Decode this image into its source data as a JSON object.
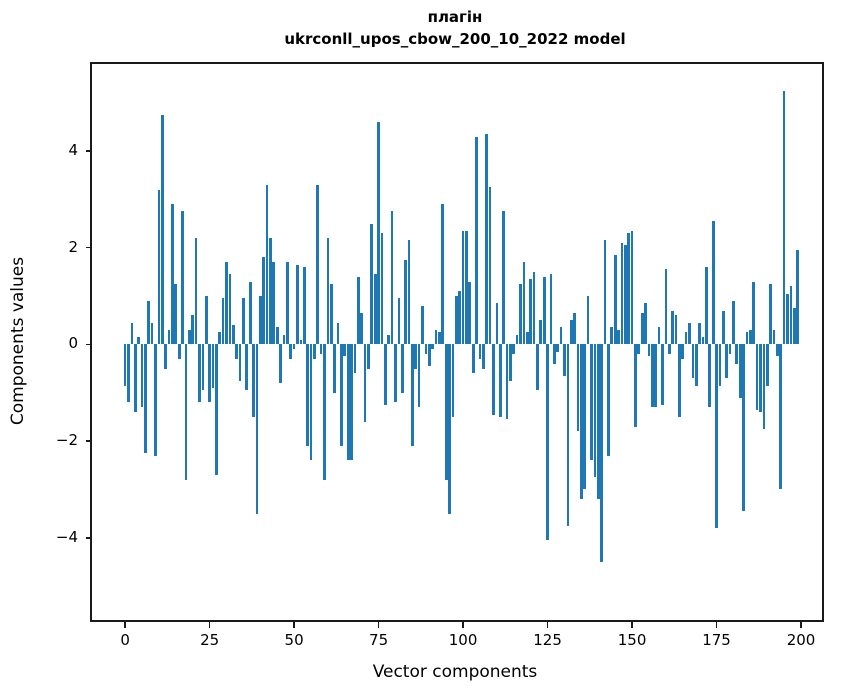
{
  "title": {
    "line1": "плагін",
    "line2": "ukrconll_upos_cbow_200_10_2022 model"
  },
  "chart_data": {
    "type": "bar",
    "title": "плагін — ukrconll_upos_cbow_200_10_2022 model",
    "xlabel": "Vector components",
    "ylabel": "Components values",
    "bar_color": "#1f77b4",
    "grid": false,
    "legend": "none",
    "x_ticks": [
      0,
      25,
      50,
      75,
      100,
      125,
      150,
      175,
      200
    ],
    "y_ticks": [
      -4,
      -2,
      0,
      2,
      4
    ],
    "xlim": [
      -9.8,
      206.2
    ],
    "ylim": [
      -5.7,
      5.8
    ],
    "categories_note": "x = vector component index 0..199",
    "values": [
      -0.85,
      -1.2,
      0.45,
      -1.4,
      0.15,
      -1.3,
      -2.25,
      0.9,
      0.45,
      -2.3,
      3.2,
      4.75,
      -0.5,
      0.3,
      2.9,
      1.25,
      -0.3,
      2.75,
      -2.8,
      0.3,
      0.6,
      2.2,
      -1.2,
      -0.95,
      1.0,
      -1.2,
      -0.9,
      -2.7,
      0.25,
      0.95,
      1.7,
      1.45,
      0.4,
      -0.3,
      -0.75,
      0.95,
      -0.95,
      1.3,
      -1.5,
      -3.5,
      1.0,
      1.8,
      3.3,
      2.2,
      1.7,
      0.35,
      -0.8,
      0.2,
      1.7,
      -0.3,
      -0.1,
      1.65,
      0.1,
      1.6,
      -2.1,
      -2.4,
      -0.3,
      3.3,
      -0.2,
      -2.8,
      2.2,
      1.25,
      -1.0,
      0.45,
      -2.1,
      -0.25,
      -2.4,
      -2.4,
      -0.6,
      1.4,
      0.65,
      -1.6,
      -0.5,
      2.5,
      1.45,
      4.6,
      2.3,
      -1.25,
      0.2,
      2.75,
      -1.2,
      0.95,
      -1.0,
      1.75,
      2.15,
      -2.1,
      -0.5,
      -1.3,
      0.8,
      -0.2,
      -0.45,
      -0.1,
      0.3,
      0.25,
      2.9,
      -2.8,
      -3.5,
      -1.5,
      1.0,
      1.1,
      2.35,
      2.35,
      1.3,
      -0.6,
      4.3,
      -0.3,
      -0.5,
      4.35,
      3.25,
      -1.45,
      0.85,
      -1.5,
      2.75,
      -1.55,
      -0.75,
      -0.2,
      0.2,
      1.25,
      1.7,
      0.25,
      1.35,
      1.5,
      -0.95,
      0.5,
      1.4,
      -4.05,
      1.45,
      -0.4,
      -0.15,
      0.35,
      -0.65,
      -3.75,
      0.5,
      0.65,
      -1.8,
      -3.2,
      -3.0,
      1.0,
      -2.4,
      -2.75,
      -3.2,
      -4.5,
      2.15,
      -2.3,
      0.35,
      1.85,
      0.3,
      2.1,
      2.05,
      2.3,
      2.35,
      -1.7,
      -0.2,
      0.65,
      0.85,
      -0.25,
      -1.3,
      -1.3,
      0.35,
      -1.25,
      1.55,
      -0.2,
      0.7,
      0.6,
      -1.5,
      -0.3,
      0.25,
      0.45,
      -0.7,
      -0.85,
      0.45,
      0.15,
      1.6,
      -1.3,
      2.55,
      -3.8,
      -0.85,
      0.7,
      -0.7,
      -0.2,
      0.9,
      -0.4,
      -1.1,
      -3.45,
      0.25,
      0.3,
      1.3,
      -1.35,
      -1.4,
      -1.75,
      -0.85,
      1.25,
      0.3,
      -0.25,
      -3.0,
      5.25,
      1.05,
      1.2,
      0.75,
      1.95
    ]
  }
}
